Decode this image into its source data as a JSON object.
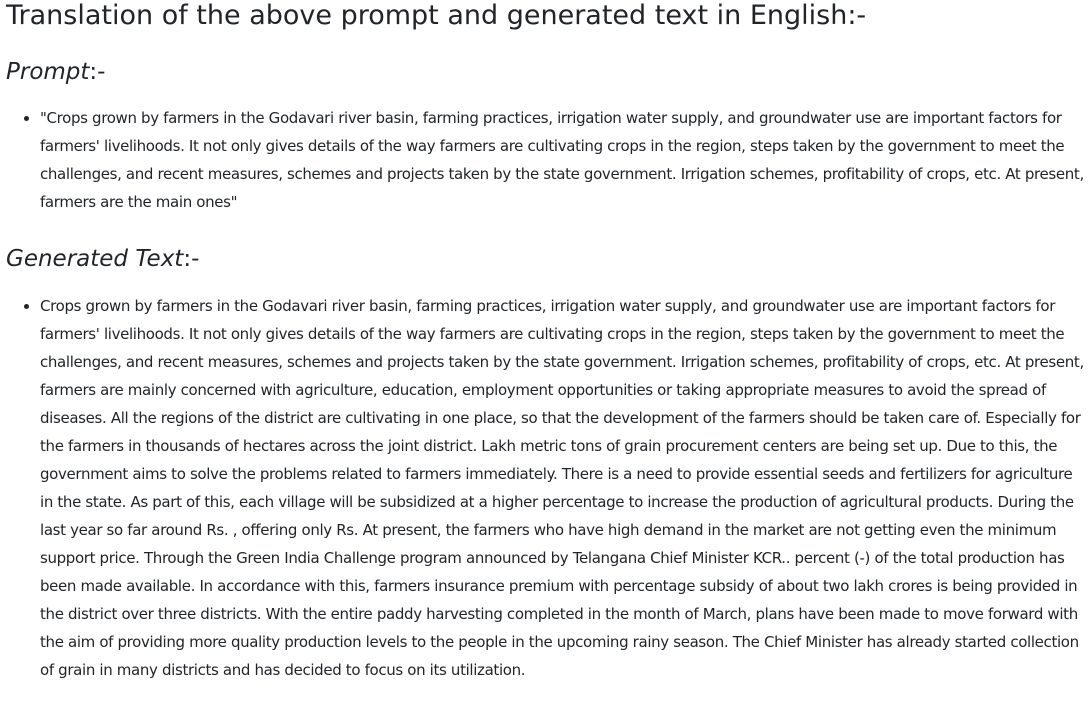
{
  "document": {
    "title": "Translation of the above prompt and generated text in English:-",
    "prompt_section": {
      "heading_italic": "Prompt",
      "heading_suffix": ":-",
      "text": "\"Crops grown by farmers in the Godavari river basin, farming practices, irrigation water supply, and groundwater use are important factors for farmers' livelihoods. It not only gives details of the way farmers are cultivating crops in the region, steps taken by the government to meet the challenges, and recent measures, schemes and projects taken by the state government. Irrigation schemes, profitability of crops, etc. At present, farmers are the main ones\""
    },
    "generated_section": {
      "heading_italic": "Generated Text",
      "heading_suffix": ":-",
      "text": "Crops grown by farmers in the Godavari river basin, farming practices, irrigation water supply, and groundwater use are important factors for farmers' livelihoods. It not only gives details of the way farmers are cultivating crops in the region, steps taken by the government to meet the challenges, and recent measures, schemes and projects taken by the state government. Irrigation schemes, profitability of crops, etc. At present, farmers are mainly concerned with agriculture, education, employment opportunities or taking appropriate measures to avoid the spread of diseases. All the regions of the district are cultivating in one place, so that the development of the farmers should be taken care of. Especially for the farmers in thousands of hectares across the joint district. Lakh metric tons of grain procurement centers are being set up. Due to this, the government aims to solve the problems related to farmers immediately. There is a need to provide essential seeds and fertilizers for agriculture in the state. As part of this, each village will be subsidized at a higher percentage to increase the production of agricultural products. During the last year so far around Rs. , offering only Rs. At present, the farmers who have high demand in the market are not getting even the minimum support price. Through the Green India Challenge program announced by Telangana Chief Minister KCR.. percent (-) of the total production has been made available. In accordance with this, farmers insurance premium with percentage subsidy of about two lakh crores is being provided in the district over three districts. With the entire paddy harvesting completed in the month of March, plans have been made to move forward with the aim of providing more quality production levels to the people in the upcoming rainy season. The Chief Minister has already started collection of grain in many districts and has decided to focus on its utilization."
    }
  }
}
